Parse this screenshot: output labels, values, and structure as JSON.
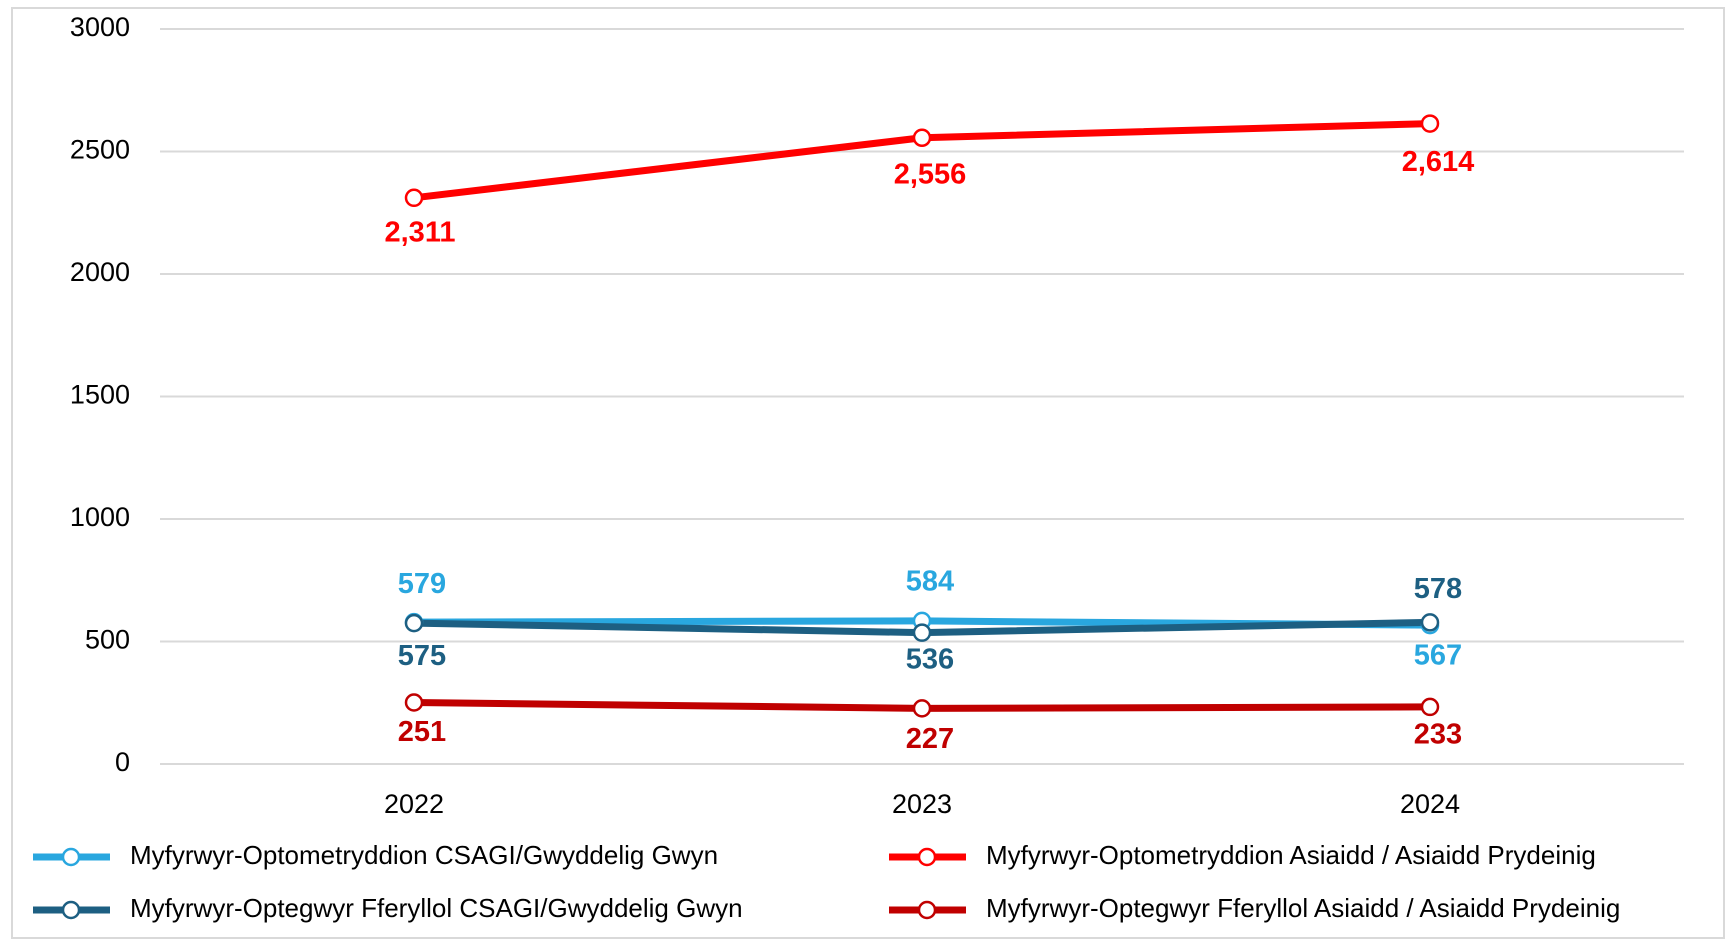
{
  "chart_data": {
    "type": "line",
    "categories": [
      "2022",
      "2023",
      "2024"
    ],
    "series": [
      {
        "name": "Myfyrwyr-Optometryddion CSAGI/Gwyddelig Gwyn",
        "color": "#29a7df",
        "values": [
          579,
          584,
          567
        ]
      },
      {
        "name": "Myfyrwyr-Optometryddion Asiaidd / Asiaidd Prydeinig",
        "color": "#ff0000",
        "values": [
          2311,
          2556,
          2614
        ],
        "value_labels": [
          "2,311",
          "2,556",
          "2,614"
        ]
      },
      {
        "name": "Myfyrwyr-Optegwyr Fferyllol CSAGI/Gwyddelig Gwyn",
        "color": "#1d5f82",
        "values": [
          575,
          536,
          578
        ]
      },
      {
        "name": "Myfyrwyr-Optegwyr Fferyllol Asiaidd / Asiaidd Prydeinig",
        "color": "#c00000",
        "values": [
          251,
          227,
          233
        ]
      }
    ],
    "ylim": [
      0,
      3000
    ],
    "yticks": [
      0,
      500,
      1000,
      1500,
      2000,
      2500,
      3000
    ],
    "grid": true
  }
}
